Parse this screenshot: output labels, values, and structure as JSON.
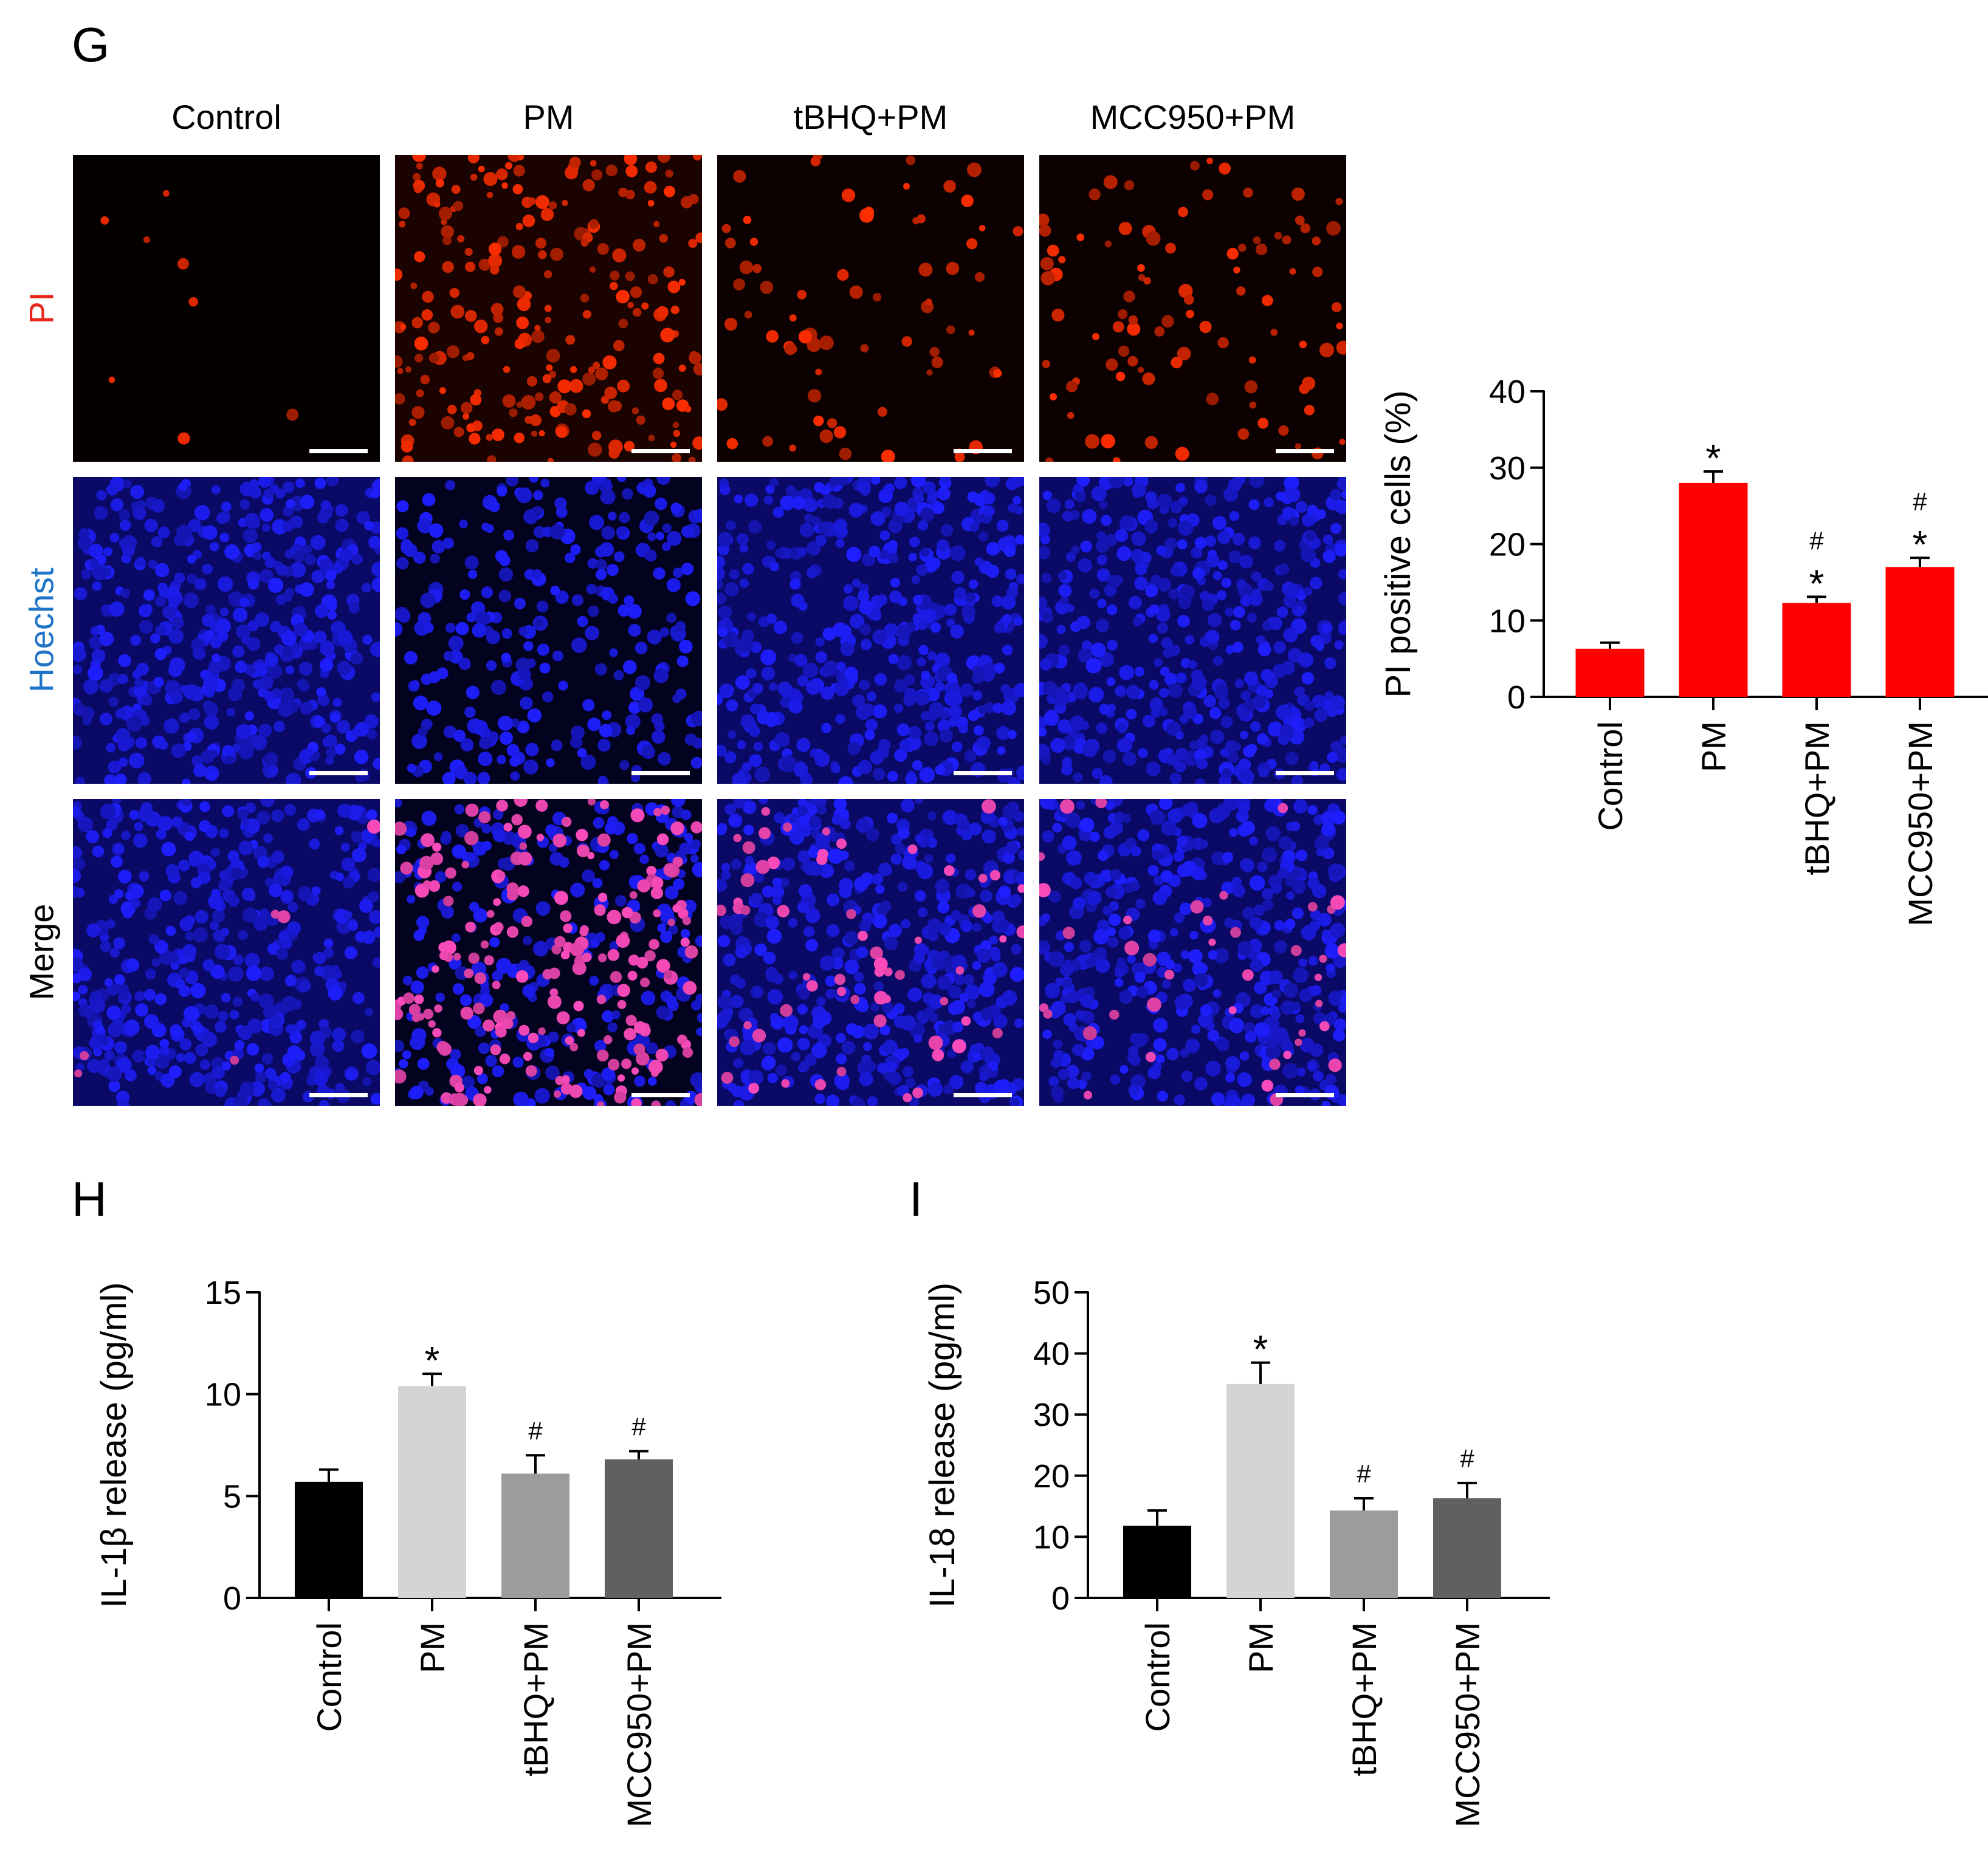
{
  "panels": {
    "g": "G",
    "h": "H",
    "i": "I"
  },
  "micrograph_grid": {
    "columns": [
      "Control",
      "PM",
      "tBHQ+PM",
      "MCC950+PM"
    ],
    "rows": [
      {
        "label": "PI",
        "color": "#e8241c"
      },
      {
        "label": "Hoechst",
        "color": "#1f74c8"
      },
      {
        "label": "Merge",
        "color": "#000000"
      }
    ]
  },
  "chart_data": [
    {
      "type": "bar",
      "panel": "G",
      "categories": [
        "Control",
        "PM",
        "tBHQ+PM",
        "MCC950+PM"
      ],
      "values": [
        6.3,
        28.0,
        12.3,
        17.0
      ],
      "errors": [
        0.8,
        1.5,
        0.8,
        1.2
      ],
      "annotations": [
        [],
        [
          "*"
        ],
        [
          "#",
          "*"
        ],
        [
          "#",
          "*"
        ]
      ],
      "ylabel": "PI positive cells (%)",
      "ylim": [
        0,
        40
      ],
      "yticks": [
        0,
        10,
        20,
        30,
        40
      ],
      "bar_colors": [
        "#ff0000",
        "#ff0000",
        "#ff0000",
        "#ff0000"
      ],
      "grid": false
    },
    {
      "type": "bar",
      "panel": "H",
      "categories": [
        "Control",
        "PM",
        "tBHQ+PM",
        "MCC950+PM"
      ],
      "values": [
        5.7,
        10.4,
        6.1,
        6.8
      ],
      "errors": [
        0.6,
        0.6,
        0.9,
        0.4
      ],
      "annotations": [
        [],
        [
          "*"
        ],
        [
          "#"
        ],
        [
          "#"
        ]
      ],
      "ylabel": "IL-1β release (pg/ml)",
      "ylim": [
        0,
        15
      ],
      "yticks": [
        0,
        5,
        10,
        15
      ],
      "bar_colors": [
        "#000000",
        "#d4d4d4",
        "#9c9c9c",
        "#606060"
      ],
      "grid": false
    },
    {
      "type": "bar",
      "panel": "I",
      "categories": [
        "Control",
        "PM",
        "tBHQ+PM",
        "MCC950+PM"
      ],
      "values": [
        11.8,
        35.0,
        14.3,
        16.3
      ],
      "errors": [
        2.5,
        3.5,
        2.0,
        2.5
      ],
      "annotations": [
        [],
        [
          "*"
        ],
        [
          "#"
        ],
        [
          "#"
        ]
      ],
      "ylabel": "IL-18 release (pg/ml)",
      "ylim": [
        0,
        50
      ],
      "yticks": [
        0,
        10,
        20,
        30,
        40,
        50
      ],
      "bar_colors": [
        "#000000",
        "#d4d4d4",
        "#9c9c9c",
        "#606060"
      ],
      "grid": false
    }
  ]
}
